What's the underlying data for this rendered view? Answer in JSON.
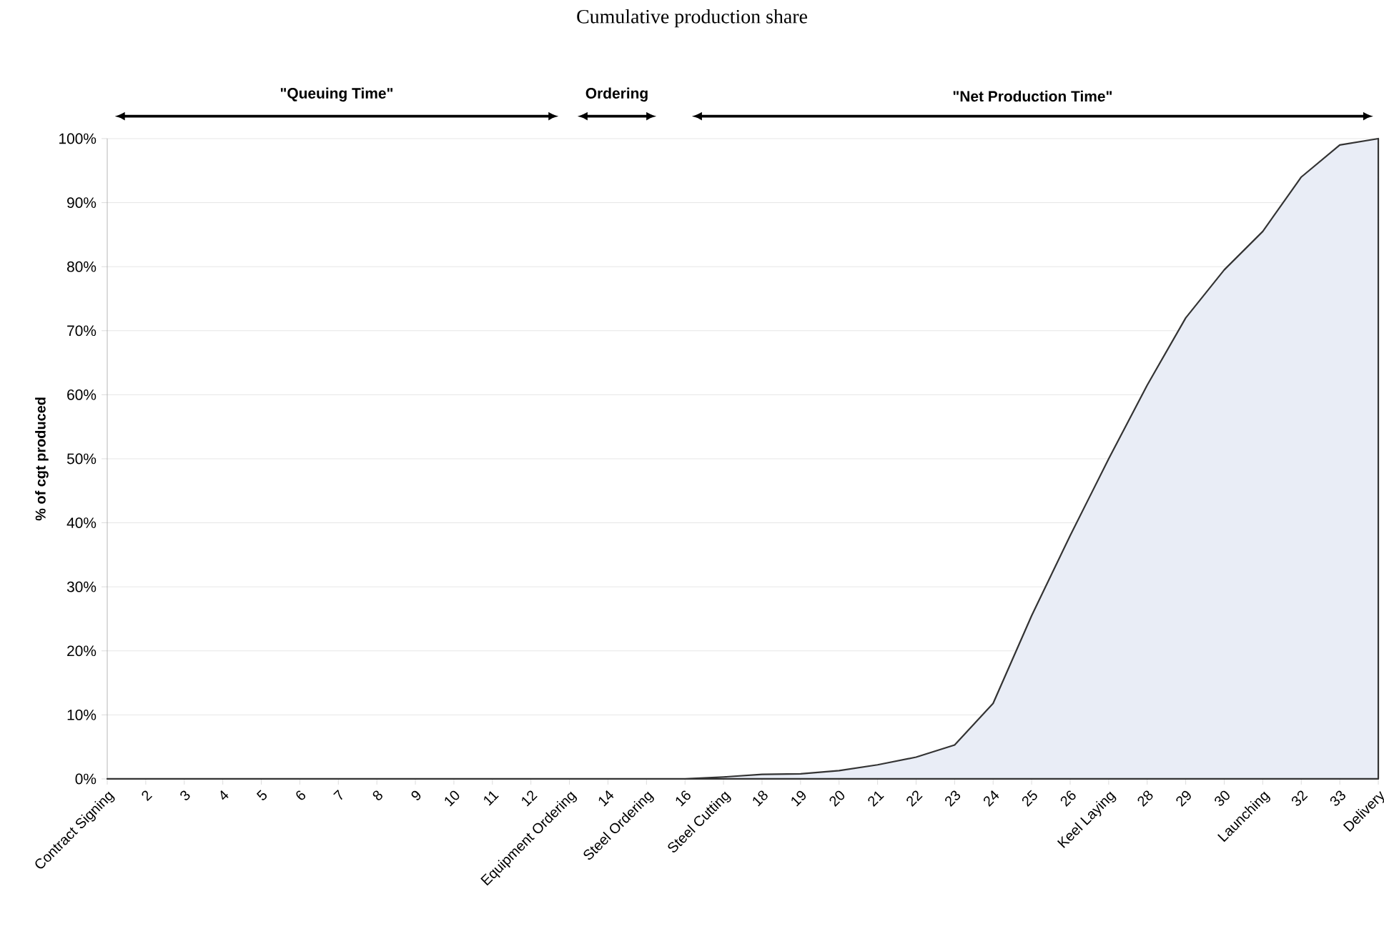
{
  "chart_data": {
    "type": "area",
    "title": "Cumulative production share",
    "ylabel": "% of cgt produced",
    "categories": [
      "Contract Signing",
      "2",
      "3",
      "4",
      "5",
      "6",
      "7",
      "8",
      "9",
      "10",
      "11",
      "12",
      "Equipment Ordering",
      "14",
      "Steel Ordering",
      "16",
      "Steel Cutting",
      "18",
      "19",
      "20",
      "21",
      "22",
      "23",
      "24",
      "25",
      "26",
      "Keel Laying",
      "28",
      "29",
      "30",
      "Launching",
      "32",
      "33",
      "Delivery"
    ],
    "series": [
      {
        "color": "#e9edf6",
        "values": [
          0,
          0,
          0,
          0,
          0,
          0,
          0,
          0,
          0,
          0,
          0,
          0,
          0,
          0,
          0,
          0,
          0.3,
          0.7,
          0.8,
          1.3,
          2.2,
          3.4,
          5.3,
          11.8,
          25.5,
          38,
          50,
          61.5,
          72,
          79.5,
          85.5,
          94,
          99,
          100
        ]
      }
    ],
    "ylim": [
      0,
      100
    ],
    "yticks": [
      {
        "value": 0,
        "label": "0%"
      },
      {
        "value": 10,
        "label": "10%"
      },
      {
        "value": 20,
        "label": "20%"
      },
      {
        "value": 30,
        "label": "30%"
      },
      {
        "value": 40,
        "label": "40%"
      },
      {
        "value": 50,
        "label": "50%"
      },
      {
        "value": 60,
        "label": "60%"
      },
      {
        "value": 70,
        "label": "70%"
      },
      {
        "value": 80,
        "label": "80%"
      },
      {
        "value": 90,
        "label": "90%"
      },
      {
        "value": 100,
        "label": "100%"
      }
    ],
    "grid": "y",
    "annotations": [
      "\"Queuing Time\"",
      "Ordering",
      "\"Net Production Time\""
    ]
  }
}
